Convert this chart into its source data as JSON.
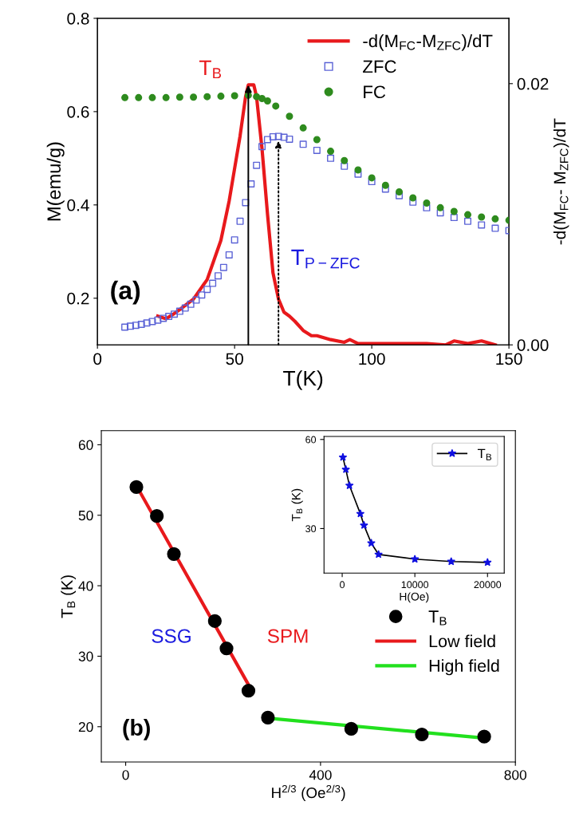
{
  "chart_data": [
    {
      "type": "scatter",
      "xlabel": "T(K)",
      "ylabel": "M(emu/g)",
      "y2label": "-d(M$_{FC}$- M$_{ZFC}$)/dT",
      "xlim": [
        0,
        150
      ],
      "xticks": [
        0,
        50,
        100,
        150
      ],
      "ylim": [
        0.1,
        0.8
      ],
      "yticks": [
        0.2,
        0.4,
        0.6,
        0.8
      ],
      "y2lim": [
        0,
        0.025
      ],
      "y2ticks": [
        {
          "value": 0,
          "label": "0.00"
        },
        {
          "value": 0.02,
          "label": "0.02"
        }
      ],
      "legend": "top right",
      "annotations": [
        {
          "text": "T$_{B}$",
          "x": 55,
          "y": 0.657
        },
        "T$_{P−ZFC}$",
        "(a)"
      ],
      "series": [
        {
          "name": "-d(M$_{FC}$-M$_{ZFC}$)/dT",
          "type": "line",
          "axis": "y2",
          "color": "#e8191c",
          "marker": "none",
          "line_style": "solid",
          "x": [
            22,
            25,
            28,
            30,
            35,
            40,
            45,
            48,
            50,
            52,
            54,
            55,
            57,
            58,
            60,
            62,
            64,
            66,
            68,
            70,
            72,
            75,
            78,
            80,
            85,
            90,
            92,
            95,
            100,
            110,
            120,
            127,
            130,
            135,
            140,
            145
          ],
          "values": [
            0.0022,
            0.002,
            0.0024,
            0.0027,
            0.0035,
            0.005,
            0.008,
            0.011,
            0.0135,
            0.016,
            0.019,
            0.0199,
            0.0199,
            0.019,
            0.015,
            0.01,
            0.0055,
            0.0035,
            0.0025,
            0.0022,
            0.0018,
            0.0011,
            0.0007,
            0.0007,
            0.0004,
            0.0002,
            0.0004,
            0.0001,
            0.0001,
            0.0001,
            0.0001,
            0.0,
            0.0003,
            0.0001,
            0.0003,
            0.0
          ]
        },
        {
          "name": "ZFC",
          "type": "scatter",
          "color": "#5b63d6",
          "marker": "square",
          "x": [
            10,
            12,
            14,
            16,
            18,
            20,
            22,
            24,
            26,
            28,
            30,
            32,
            34,
            36,
            38,
            40,
            42,
            44,
            46,
            48,
            50,
            52,
            54,
            56,
            58,
            60,
            62,
            64,
            66,
            68,
            70,
            75,
            80,
            85,
            90,
            95,
            100,
            105,
            110,
            115,
            120,
            125,
            130,
            135,
            140,
            145,
            150
          ],
          "values": [
            0.138,
            0.14,
            0.142,
            0.144,
            0.147,
            0.15,
            0.153,
            0.157,
            0.161,
            0.166,
            0.172,
            0.179,
            0.187,
            0.196,
            0.207,
            0.219,
            0.232,
            0.248,
            0.266,
            0.293,
            0.325,
            0.365,
            0.405,
            0.445,
            0.485,
            0.525,
            0.54,
            0.546,
            0.547,
            0.545,
            0.541,
            0.53,
            0.517,
            0.5,
            0.483,
            0.466,
            0.45,
            0.434,
            0.42,
            0.406,
            0.394,
            0.383,
            0.373,
            0.365,
            0.357,
            0.35,
            0.345
          ]
        },
        {
          "name": "FC",
          "type": "scatter",
          "color": "#2e8b1e",
          "marker": "circle",
          "x": [
            10,
            15,
            20,
            25,
            30,
            35,
            40,
            45,
            50,
            55,
            58,
            60,
            62,
            65,
            70,
            75,
            80,
            85,
            90,
            95,
            100,
            105,
            110,
            115,
            120,
            125,
            130,
            135,
            140,
            145,
            150
          ],
          "values": [
            0.63,
            0.63,
            0.63,
            0.63,
            0.631,
            0.631,
            0.632,
            0.633,
            0.634,
            0.635,
            0.632,
            0.628,
            0.623,
            0.612,
            0.59,
            0.565,
            0.54,
            0.515,
            0.495,
            0.475,
            0.458,
            0.442,
            0.428,
            0.415,
            0.404,
            0.394,
            0.386,
            0.379,
            0.374,
            0.37,
            0.367
          ]
        }
      ]
    },
    {
      "type": "scatter",
      "xlabel": "H$^{2/3}$ (Oe$^{2/3}$)",
      "ylabel": "T$_{B}$ (K)",
      "xlim": [
        -50,
        800
      ],
      "xticks": [
        0,
        400,
        800
      ],
      "ylim": [
        15,
        62
      ],
      "yticks": [
        20,
        30,
        40,
        50,
        60
      ],
      "legend": "right",
      "annotations": [
        "SSG",
        "SPM",
        "(b)"
      ],
      "series": [
        {
          "name": "T$_{B}$",
          "type": "scatter",
          "color": "#000000",
          "marker": "circle",
          "x": [
            22,
            64,
            99,
            183,
            207,
            252,
            292,
            463,
            608,
            736
          ],
          "values": [
            54.0,
            49.9,
            44.5,
            35.0,
            31.1,
            25.1,
            21.3,
            19.7,
            18.9,
            18.6
          ]
        },
        {
          "name": "Low field",
          "type": "line",
          "color": "#e8191c",
          "marker": "none",
          "line_style": "solid",
          "x": [
            22,
            255
          ],
          "values": [
            54.2,
            25.6
          ]
        },
        {
          "name": "High field",
          "type": "line",
          "color": "#22e01e",
          "marker": "none",
          "line_style": "solid",
          "x": [
            292,
            735
          ],
          "values": [
            21.2,
            18.4
          ]
        }
      ]
    },
    {
      "type": "line",
      "xlabel": "H(Oe)",
      "ylabel": "T$_{B}$ (K)",
      "xlim": [
        -2500,
        22300
      ],
      "xticks": [
        0,
        10000,
        20000
      ],
      "ylim": [
        15,
        61
      ],
      "yticks": [
        30,
        60
      ],
      "legend": "top right",
      "marker": "star",
      "line_style": "solid",
      "series": [
        {
          "name": "T$_{B}$",
          "color": "#1010e0",
          "x": [
            100,
            500,
            1000,
            2500,
            3000,
            4000,
            5000,
            10000,
            15000,
            20000
          ],
          "values": [
            54.0,
            49.9,
            44.5,
            35.0,
            31.1,
            25.1,
            21.3,
            19.7,
            18.9,
            18.6
          ]
        }
      ]
    }
  ]
}
